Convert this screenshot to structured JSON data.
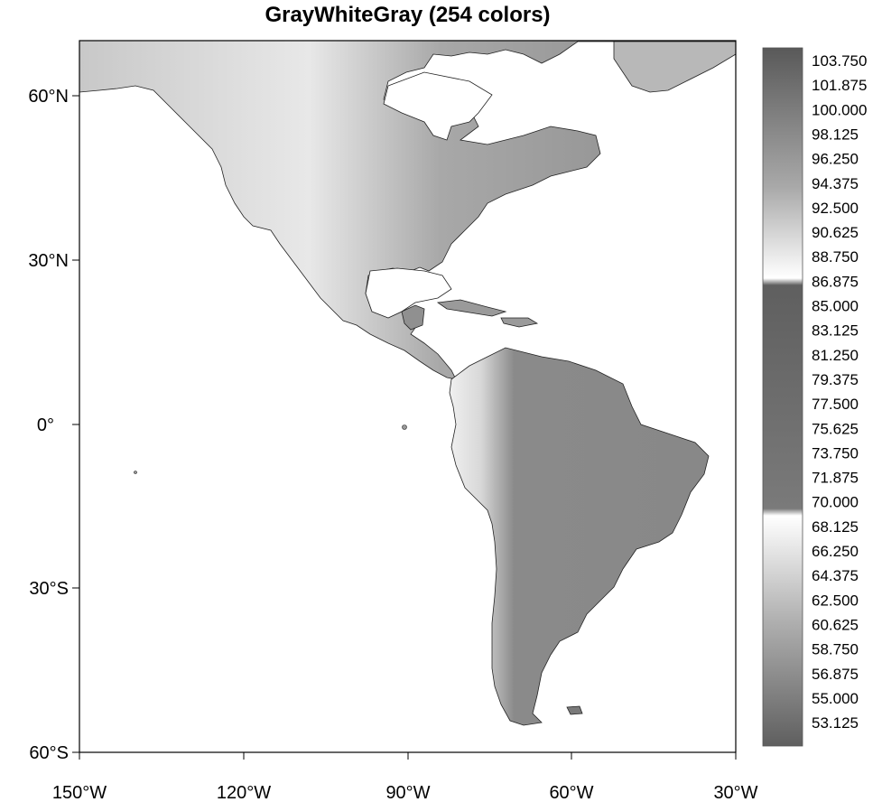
{
  "title": "GrayWhiteGray (254 colors)",
  "map": {
    "lon_range": [
      -150,
      -30
    ],
    "lat_range": [
      -60,
      70
    ],
    "lon_ticks": [
      "150°W",
      "120°W",
      "90°W",
      "60°W",
      "30°W"
    ],
    "lat_ticks": [
      "60°N",
      "30°N",
      "0°",
      "30°S",
      "60°S"
    ],
    "ocean_color": "#ffffff",
    "coastline_color": "#000000"
  },
  "colorbar": {
    "palette": "GrayWhiteGray",
    "n_colors": 254,
    "labels": [
      "103.750",
      "101.875",
      "100.000",
      "98.125",
      "96.250",
      "94.375",
      "92.500",
      "90.625",
      "88.750",
      "86.875",
      "85.000",
      "83.125",
      "81.250",
      "79.375",
      "77.500",
      "75.625",
      "73.750",
      "71.875",
      "70.000",
      "68.125",
      "66.250",
      "64.375",
      "62.500",
      "60.625",
      "58.750",
      "56.875",
      "55.000",
      "53.125"
    ]
  }
}
